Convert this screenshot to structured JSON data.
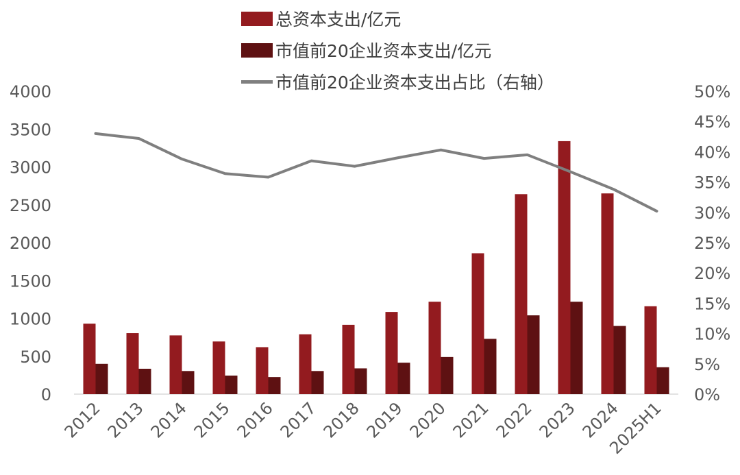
{
  "chart_data": {
    "type": "bar",
    "categories": [
      "2012",
      "2013",
      "2014",
      "2015",
      "2016",
      "2017",
      "2018",
      "2019",
      "2020",
      "2021",
      "2022",
      "2023",
      "2024",
      "2025H1"
    ],
    "series": [
      {
        "name": "总资本支出/亿元",
        "type": "bar",
        "axis": "left",
        "color": "#931b1f",
        "values": [
          930,
          805,
          775,
          695,
          620,
          790,
          915,
          1085,
          1220,
          1860,
          2640,
          3340,
          2650,
          1160
        ]
      },
      {
        "name": "市值前20企业资本支出/亿元",
        "type": "bar",
        "axis": "left",
        "color": "#5e1112",
        "values": [
          400,
          335,
          305,
          245,
          225,
          305,
          340,
          415,
          490,
          730,
          1040,
          1220,
          900,
          355
        ]
      },
      {
        "name": "市值前20企业资本支出占比（右轴）",
        "type": "line",
        "axis": "right",
        "color": "#7f7f7f",
        "values": [
          0.43,
          0.422,
          0.388,
          0.364,
          0.358,
          0.385,
          0.376,
          0.39,
          0.403,
          0.389,
          0.395,
          0.367,
          0.338,
          0.302
        ]
      }
    ],
    "y_left": {
      "min": 0,
      "max": 4000,
      "step": 500,
      "ticks": [
        "0",
        "500",
        "1000",
        "1500",
        "2000",
        "2500",
        "3000",
        "3500",
        "4000"
      ]
    },
    "y_right": {
      "min": 0,
      "max": 0.5,
      "step": 0.05,
      "ticks": [
        "0%",
        "5%",
        "10%",
        "15%",
        "20%",
        "25%",
        "30%",
        "35%",
        "40%",
        "45%",
        "50%"
      ]
    },
    "grid": false,
    "legend_position": "top-center"
  }
}
